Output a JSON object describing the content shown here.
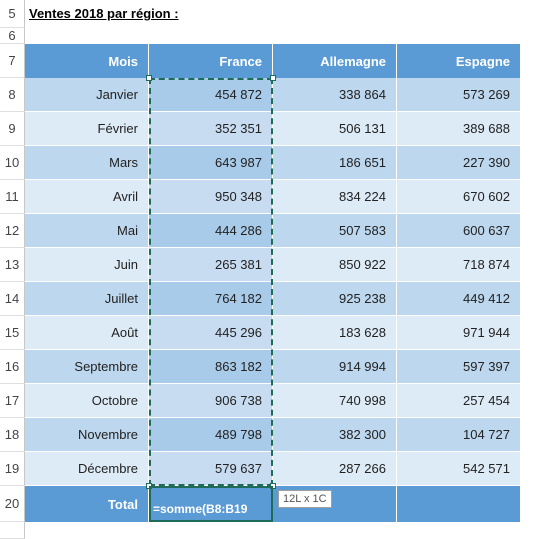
{
  "title": "Ventes 2018 par région :",
  "row_numbers": [
    5,
    6,
    7,
    8,
    9,
    10,
    11,
    12,
    13,
    14,
    15,
    16,
    17,
    18,
    19,
    20
  ],
  "table": {
    "headers": [
      "Mois",
      "France",
      "Allemagne",
      "Espagne"
    ],
    "rows": [
      [
        "Janvier",
        "454 872",
        "338 864",
        "573 269"
      ],
      [
        "Février",
        "352 351",
        "506 131",
        "389 688"
      ],
      [
        "Mars",
        "643 987",
        "186 651",
        "227 390"
      ],
      [
        "Avril",
        "950 348",
        "834 224",
        "670 602"
      ],
      [
        "Mai",
        "444 286",
        "507 583",
        "600 637"
      ],
      [
        "Juin",
        "265 381",
        "850 922",
        "718 874"
      ],
      [
        "Juillet",
        "764 182",
        "925 238",
        "449 412"
      ],
      [
        "Août",
        "445 296",
        "183 628",
        "971 944"
      ],
      [
        "Septembre",
        "863 182",
        "914 994",
        "597 397"
      ],
      [
        "Octobre",
        "906 738",
        "740 998",
        "257 454"
      ],
      [
        "Novembre",
        "489 798",
        "382 300",
        "104 727"
      ],
      [
        "Décembre",
        "579 637",
        "287 266",
        "542 571"
      ]
    ],
    "total_label": "Total",
    "formula": "=somme(B8:B19",
    "tooltip": "12L x 1C"
  }
}
